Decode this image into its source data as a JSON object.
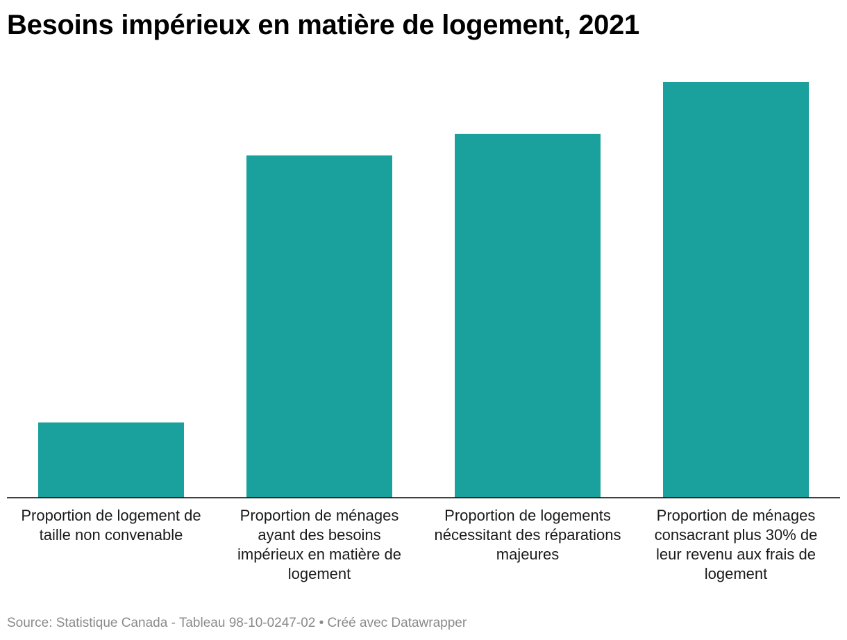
{
  "title": "Besoins impérieux en matière de logement, 2021",
  "source": "Source: Statistique Canada - Tableau 98-10-0247-02 • Créé avec Datawrapper",
  "colors": {
    "bar": "#1aa09d",
    "baseline": "#000000",
    "label": "#1a1a1a",
    "source": "#8a8a8a"
  },
  "chart_data": {
    "type": "bar",
    "title": "Besoins impérieux en matière de logement, 2021",
    "xlabel": "",
    "ylabel": "",
    "categories": [
      "Proportion de logement de taille non convenable",
      "Proportion de ménages ayant des besoins impérieux en matière de logement",
      "Proportion de logements nécessitant des réparations majeures",
      "Proportion de ménages consacrant plus 30% de leur revenu aux frais de logement"
    ],
    "values": [
      4.2,
      19.1,
      20.3,
      23.2
    ],
    "ylim": [
      0,
      27.5
    ],
    "grid": false,
    "legend": "none"
  }
}
